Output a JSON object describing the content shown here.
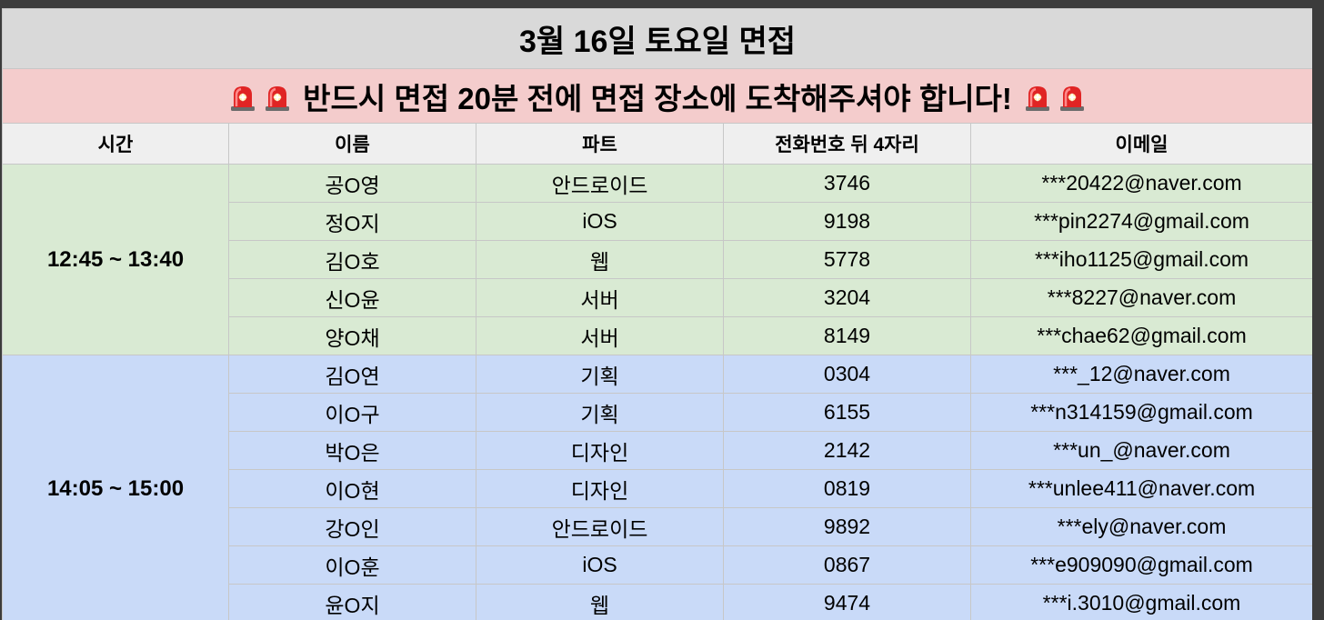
{
  "title": "3월 16일 토요일 면접",
  "alert": {
    "text": "반드시 면접 20분 전에 면접 장소에 도착해주셔야 합니다!",
    "icon": "police-car-light-icon"
  },
  "headers": [
    "시간",
    "이름",
    "파트",
    "전화번호 뒤 4자리",
    "이메일"
  ],
  "colors": {
    "title_bg": "#d9d9d9",
    "alert_bg": "#f4cccc",
    "header_bg": "#efefef",
    "group1_bg": "#d9ead3",
    "group2_bg": "#c9daf8"
  },
  "groups": [
    {
      "time": "12:45 ~ 13:40",
      "rows": [
        {
          "name": "공O영",
          "part": "안드로이드",
          "phone": "3746",
          "email": "***20422@naver.com"
        },
        {
          "name": "정O지",
          "part": "iOS",
          "phone": "9198",
          "email": "***pin2274@gmail.com"
        },
        {
          "name": "김O호",
          "part": "웹",
          "phone": "5778",
          "email": "***iho1125@gmail.com"
        },
        {
          "name": "신O윤",
          "part": "서버",
          "phone": "3204",
          "email": "***8227@naver.com"
        },
        {
          "name": "양O채",
          "part": "서버",
          "phone": "8149",
          "email": "***chae62@gmail.com"
        }
      ]
    },
    {
      "time": "14:05 ~ 15:00",
      "rows": [
        {
          "name": "김O연",
          "part": "기획",
          "phone": "0304",
          "email": "***_12@naver.com"
        },
        {
          "name": "이O구",
          "part": "기획",
          "phone": "6155",
          "email": "***n314159@gmail.com"
        },
        {
          "name": "박O은",
          "part": "디자인",
          "phone": "2142",
          "email": "***un_@naver.com"
        },
        {
          "name": "이O현",
          "part": "디자인",
          "phone": "0819",
          "email": "***unlee411@naver.com"
        },
        {
          "name": "강O인",
          "part": "안드로이드",
          "phone": "9892",
          "email": "***ely@naver.com"
        },
        {
          "name": "이O훈",
          "part": "iOS",
          "phone": "0867",
          "email": "***e909090@gmail.com"
        },
        {
          "name": "윤O지",
          "part": "웹",
          "phone": "9474",
          "email": "***i.3010@gmail.com"
        }
      ]
    }
  ]
}
